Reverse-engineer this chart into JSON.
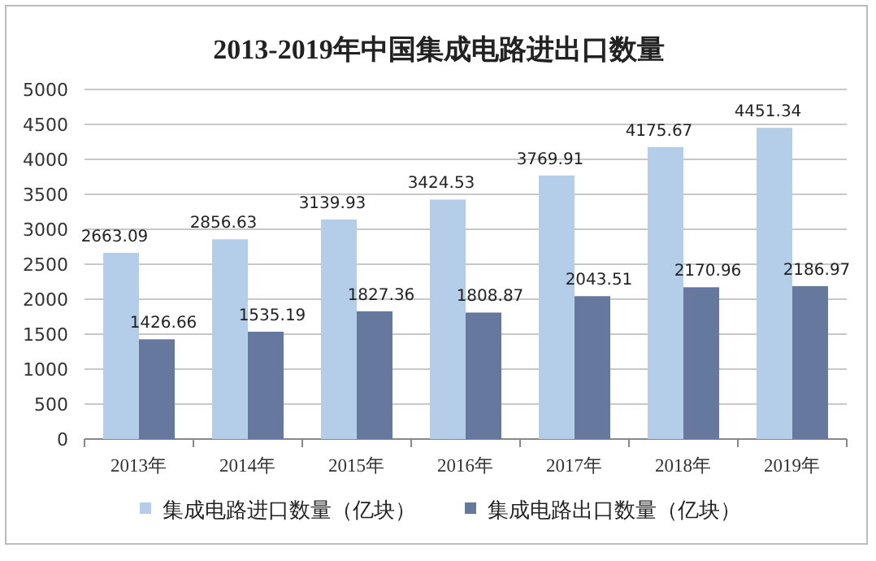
{
  "chart_data": {
    "type": "bar",
    "title": "2013-2019年中国集成电路进出口数量",
    "categories": [
      "2013年",
      "2014年",
      "2015年",
      "2016年",
      "2017年",
      "2018年",
      "2019年"
    ],
    "series": [
      {
        "name": "集成电路进口数量（亿块）",
        "color": "#b4cde9",
        "values": [
          2663.09,
          2856.63,
          3139.93,
          3424.53,
          3769.91,
          4175.67,
          4451.34
        ]
      },
      {
        "name": "集成电路出口数量（亿块）",
        "color": "#67789f",
        "values": [
          1426.66,
          1535.19,
          1827.36,
          1808.87,
          2043.51,
          2170.96,
          2186.97
        ]
      }
    ],
    "ylim": [
      0,
      5000
    ],
    "yticks": [
      0,
      500,
      1000,
      1500,
      2000,
      2500,
      3000,
      3500,
      4000,
      4500,
      5000
    ],
    "grid": "y",
    "legend": "bottom",
    "data_labels": true
  }
}
